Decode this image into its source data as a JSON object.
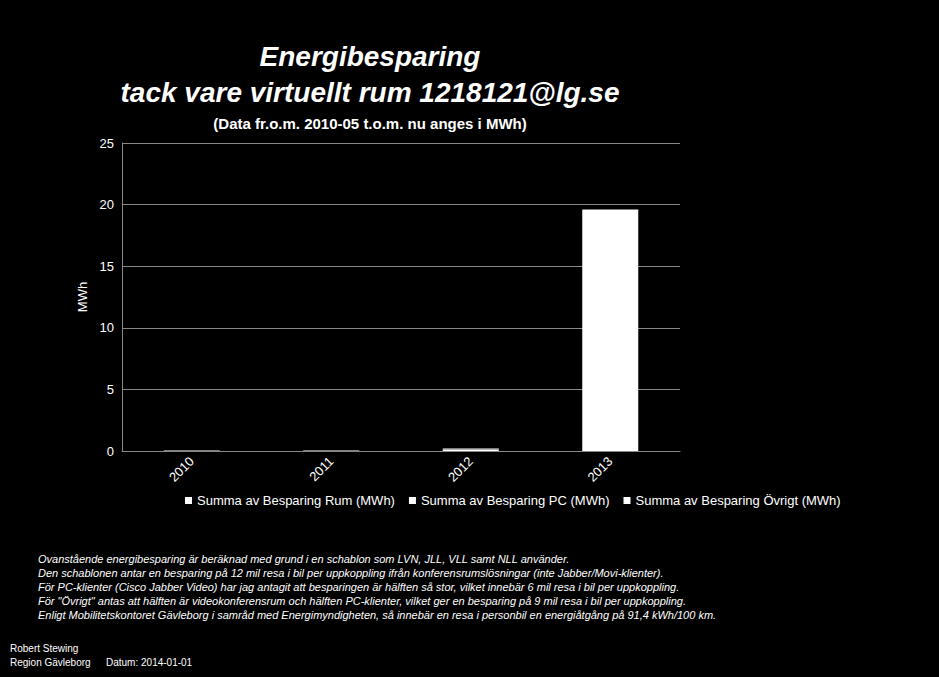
{
  "chart_data": {
    "type": "bar",
    "title": "Energibesparing\ntack vare virtuellt rum 1218121@lg.se",
    "subtitle": "(Data fr.o.m. 2010-05 t.o.m. nu anges i MWh)",
    "y_label": "MWh",
    "categories": [
      "2010",
      "2011",
      "2012",
      "2013"
    ],
    "series": [
      {
        "name": "Summa av Besparing Rum (MWh)",
        "color": "#ffffff",
        "values": [
          0.05,
          0.05,
          0.1,
          0
        ]
      },
      {
        "name": "Summa av Besparing PC (MWh)",
        "color": "#ffffff",
        "values": [
          0,
          0,
          0.05,
          0
        ]
      },
      {
        "name": "Summa av Besparing Övrigt (MWh)",
        "color": "#ffffff",
        "values": [
          0,
          0,
          0.05,
          19.6
        ]
      }
    ],
    "stacked": true,
    "ylim": [
      0,
      25
    ],
    "yticks": [
      0,
      5,
      10,
      15,
      20,
      25
    ],
    "grid": true,
    "legend": "bottom",
    "notes": [
      "Ovanstående energibesparing är beräknad med grund i en schablon som LVN, JLL, VLL samt NLL använder.",
      "Den schablonen antar en besparing på 12 mil resa i bil per uppkoppling ifrån konferensrumslösningar (inte Jabber/Movi-klienter).",
      "För PC-klienter (Cisco Jabber Video) har jag antagit att besparingen är hälften så stor, vilket innebär 6 mil resa i bil per uppkoppling.",
      "För \"Övrigt\" antas att hälften är videokonferensrum och hälften PC-klienter, vilket ger en besparing på 9 mil resa i bil per uppkoppling.",
      "Enligt Mobilitetskontoret Gävleborg i samråd med Energimyndigheten, så innebär en resa i personbil en energiåtgång på 91,4 kWh/100 km."
    ],
    "author": [
      "Robert Stewing",
      "Region Gävleborg"
    ],
    "date_label": "Datum: 2014-01-01"
  }
}
